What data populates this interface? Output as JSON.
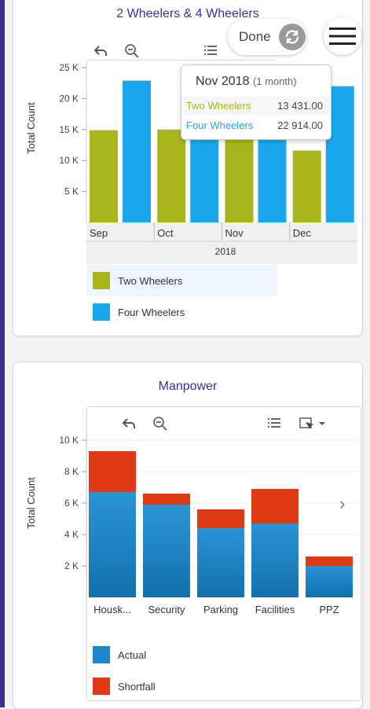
{
  "top_chart": {
    "title": "2 Wheelers & 4 Wheelers",
    "ylabel": "Total Count",
    "year_label": "2018",
    "tooltip": {
      "title": "Nov 2018",
      "subtitle": "(1 month)",
      "rows": [
        {
          "name": "Two Wheelers",
          "value": "13 431.00",
          "color": "#a8b51a"
        },
        {
          "name": "Four Wheelers",
          "value": "22 914.00",
          "color": "#1aa7ec"
        }
      ]
    },
    "legend": [
      {
        "label": "Two Wheelers",
        "color": "#a8b51a"
      },
      {
        "label": "Four Wheelers",
        "color": "#1aa7ec"
      }
    ]
  },
  "bottom_chart": {
    "title": "Manpower",
    "ylabel": "Total Count",
    "legend": [
      {
        "label": "Actual",
        "color": "#1c86c8"
      },
      {
        "label": "Shortfall",
        "color": "#e03a14"
      }
    ]
  },
  "overlay": {
    "done_label": "Done"
  },
  "icons": {
    "undo": "undo-icon",
    "zoom_out": "zoom-out-icon",
    "list": "list-icon",
    "select": "select-icon",
    "refresh": "refresh-icon",
    "menu": "hamburger-menu-icon",
    "next": "chevron-right-icon"
  },
  "chart_data": [
    {
      "type": "bar",
      "title": "2 Wheelers & 4 Wheelers",
      "ylabel": "Total Count",
      "xlabel": "2018",
      "categories": [
        "Sep",
        "Oct",
        "Nov",
        "Dec"
      ],
      "y_ticks": [
        "5 K",
        "10 K",
        "15 K",
        "20 K",
        "25 K"
      ],
      "ylim": [
        0,
        25000
      ],
      "series": [
        {
          "name": "Two Wheelers",
          "color": "#a8b51a",
          "values": [
            14900,
            15000,
            13431,
            11600
          ]
        },
        {
          "name": "Four Wheelers",
          "color": "#1aa7ec",
          "values": [
            22900,
            14000,
            22914,
            22000
          ]
        }
      ],
      "legend_position": "bottom-left"
    },
    {
      "type": "bar",
      "stacked": true,
      "title": "Manpower",
      "ylabel": "Total Count",
      "categories": [
        "Housk...",
        "Security",
        "Parking",
        "Facilities",
        "PPZ"
      ],
      "y_ticks": [
        "2 K",
        "4 K",
        "6 K",
        "8 K",
        "10 K"
      ],
      "ylim": [
        0,
        10000
      ],
      "series": [
        {
          "name": "Actual",
          "color": "#1c86c8",
          "values": [
            6700,
            5900,
            4400,
            4700,
            2000
          ]
        },
        {
          "name": "Shortfall",
          "color": "#e03a14",
          "values": [
            2600,
            700,
            1200,
            2200,
            600
          ]
        }
      ],
      "legend_position": "bottom-left"
    }
  ]
}
